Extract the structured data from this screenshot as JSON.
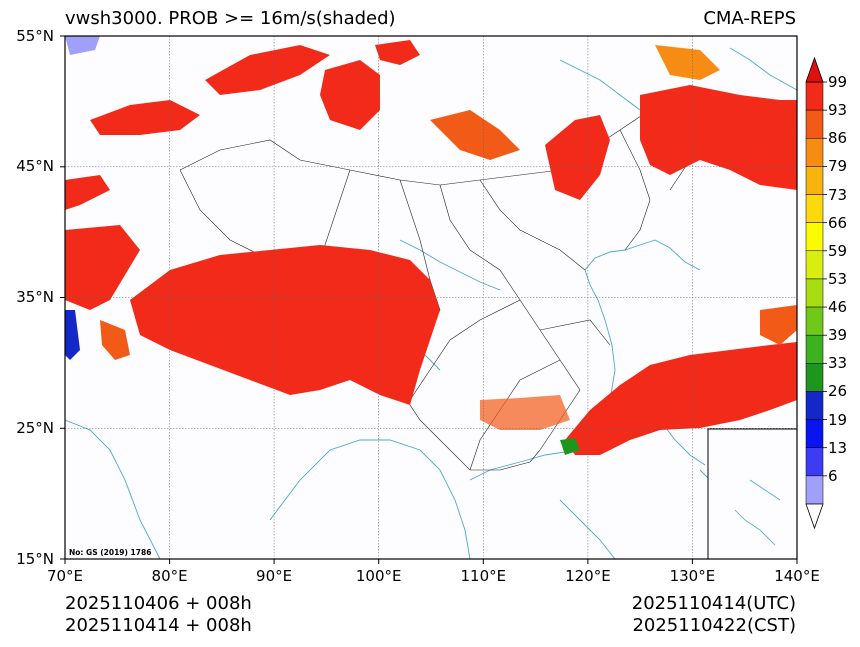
{
  "header": {
    "title_left": "vwsh3000. PROB >= 16m/s(shaded)",
    "title_right": "CMA-REPS"
  },
  "map": {
    "lat_labels": [
      "55°N",
      "45°N",
      "35°N",
      "25°N",
      "15°N"
    ],
    "lon_labels": [
      "70°E",
      "80°E",
      "90°E",
      "100°E",
      "110°E",
      "120°E",
      "130°E",
      "140°E"
    ],
    "watermark": "No: GS (2019) 1786"
  },
  "colorbar": {
    "labels": [
      "99",
      "93",
      "86",
      "79",
      "73",
      "66",
      "59",
      "53",
      "46",
      "39",
      "33",
      "26",
      "19",
      "13",
      "6"
    ],
    "colors": [
      "#f22a1a",
      "#f25a18",
      "#f78c14",
      "#f8b30f",
      "#fbd90a",
      "#fafa00",
      "#d8ee10",
      "#a8dd14",
      "#70c818",
      "#3cb21e",
      "#1e961e",
      "#1428c8",
      "#0a14f0",
      "#3c3cf5",
      "#a0a0fa"
    ]
  },
  "footer": {
    "init_line1": "2025110406  +  008h",
    "init_line2": "2025110414  +  008h",
    "valid_utc": "2025110414(UTC)",
    "valid_cst": "2025110422(CST)"
  }
}
